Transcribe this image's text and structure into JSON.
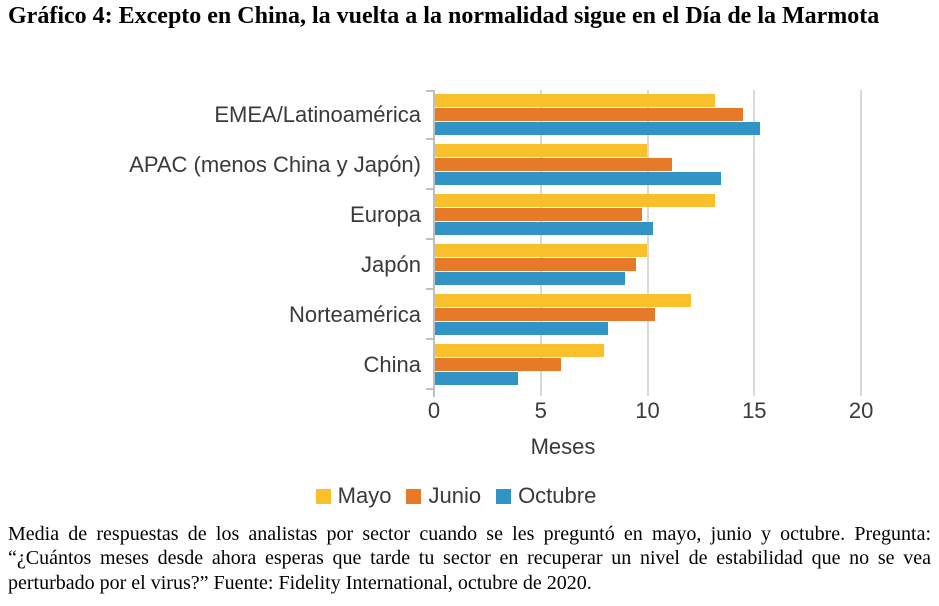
{
  "page": {
    "title": "Gráfico 4: Excepto en China, la vuelta a la normalidad sigue en el Día de la Marmota",
    "footnote": "Media de respuestas de los analistas por sector cuando se les preguntó en mayo, junio y octubre. Pregunta: “¿Cuántos meses desde ahora esperas que tarde tu sector en recuperar un nivel de estabilidad que no se vea perturbado por el virus?” Fuente: Fidelity International, octubre de 2020."
  },
  "chart_data": {
    "type": "bar",
    "orientation": "horizontal",
    "categories": [
      "EMEA/Latinoamérica",
      "APAC (menos China y Japón)",
      "Europa",
      "Japón",
      "Norteamérica",
      "China"
    ],
    "series": [
      {
        "name": "Mayo",
        "color": "#FAC02B",
        "values": [
          13.2,
          10.0,
          13.2,
          10.0,
          12.1,
          8.0
        ]
      },
      {
        "name": "Junio",
        "color": "#E67A29",
        "values": [
          14.5,
          11.2,
          9.8,
          9.5,
          10.4,
          6.0
        ]
      },
      {
        "name": "Octubre",
        "color": "#3193C6",
        "values": [
          15.3,
          13.5,
          10.3,
          9.0,
          8.2,
          4.0
        ]
      }
    ],
    "xlabel": "Meses",
    "xticks": [
      0,
      5,
      10,
      15,
      20
    ],
    "xlim": [
      0,
      21.4
    ],
    "grid": true,
    "legend_position": "bottom",
    "axis_color": "#BFBFBF",
    "gridline_color": "#D9D9D9",
    "label_color": "#3A3A3A"
  }
}
